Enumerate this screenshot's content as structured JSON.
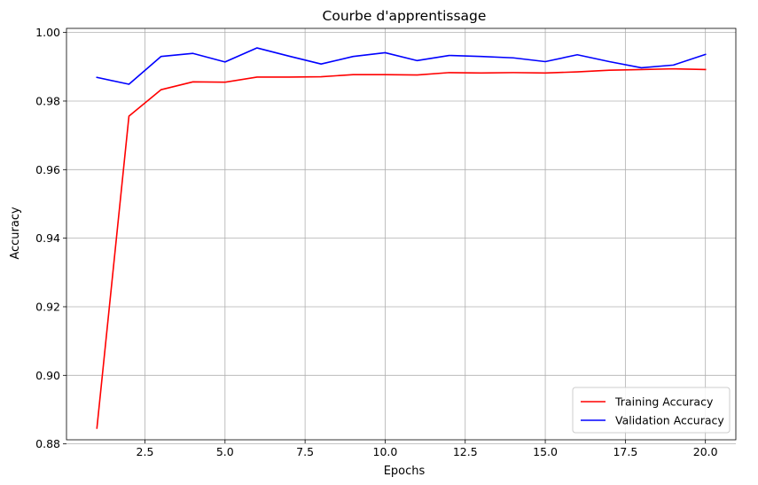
{
  "chart_data": {
    "type": "line",
    "title": "Courbe d'apprentissage",
    "xlabel": "Epochs",
    "ylabel": "Accuracy",
    "xlim": [
      0.05,
      20.95
    ],
    "ylim": [
      0.8812,
      1.0012
    ],
    "xticks": [
      2.5,
      5.0,
      7.5,
      10.0,
      12.5,
      15.0,
      17.5,
      20.0
    ],
    "xtick_labels": [
      "2.5",
      "5.0",
      "7.5",
      "10.0",
      "12.5",
      "15.0",
      "17.5",
      "20.0"
    ],
    "yticks": [
      0.88,
      0.9,
      0.92,
      0.94,
      0.96,
      0.98,
      1.0
    ],
    "ytick_labels": [
      "0.88",
      "0.90",
      "0.92",
      "0.94",
      "0.96",
      "0.98",
      "1.00"
    ],
    "grid": true,
    "legend_position": "lower-right",
    "x": [
      1,
      2,
      3,
      4,
      5,
      6,
      7,
      8,
      9,
      10,
      11,
      12,
      13,
      14,
      15,
      16,
      17,
      18,
      19,
      20
    ],
    "series": [
      {
        "name": "Training Accuracy",
        "color": "#ff0000",
        "values": [
          0.8846,
          0.9756,
          0.9833,
          0.9856,
          0.9855,
          0.987,
          0.987,
          0.9871,
          0.9877,
          0.9877,
          0.9876,
          0.9883,
          0.9882,
          0.9883,
          0.9882,
          0.9885,
          0.989,
          0.9892,
          0.9894,
          0.9892
        ]
      },
      {
        "name": "Validation Accuracy",
        "color": "#0000ff",
        "values": [
          0.9869,
          0.9849,
          0.993,
          0.9939,
          0.9914,
          0.9955,
          0.9931,
          0.9908,
          0.993,
          0.9941,
          0.9918,
          0.9933,
          0.993,
          0.9926,
          0.9915,
          0.9935,
          0.9915,
          0.9897,
          0.9905,
          0.9936
        ]
      }
    ]
  }
}
